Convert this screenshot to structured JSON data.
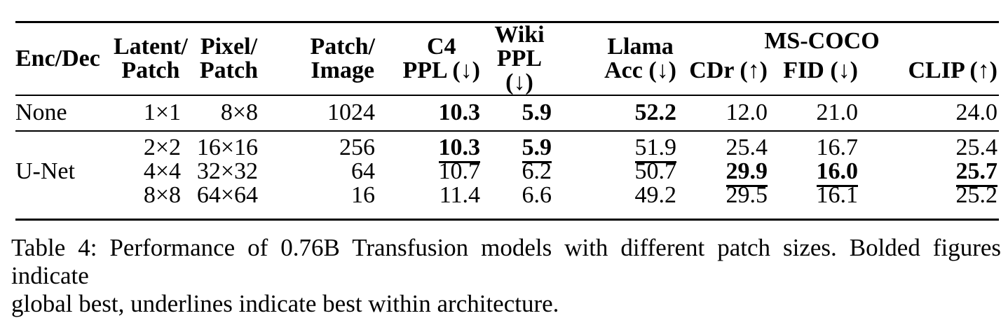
{
  "page": {
    "background": "#ffffff",
    "text_color": "#000000",
    "rule_color": "#000000"
  },
  "table": {
    "header": {
      "enc_dec": "Enc/Dec",
      "latent_patch": {
        "line1": "Latent/",
        "line2": "Patch"
      },
      "pixel_patch": {
        "line1": "Pixel/",
        "line2": "Patch"
      },
      "patch_image": {
        "line1": "Patch/",
        "line2": "Image"
      },
      "c4_ppl": {
        "line1": "C4",
        "line2": "PPL (↓)"
      },
      "wiki_ppl": {
        "line1": "Wiki",
        "line2": "PPL (↓)"
      },
      "llama_acc": {
        "line1": "Llama",
        "line2": "Acc (↓)"
      },
      "ms_coco_group": "MS-COCO",
      "cdr": "CDr (↑)",
      "fid": "FID (↓)",
      "clip": "CLIP (↑)"
    },
    "rows": [
      {
        "enc_dec": "None",
        "latent_patch": "1×1",
        "pixel_patch": "8×8",
        "patch_image": "1024",
        "c4_ppl": "10.3",
        "wiki_ppl": "5.9",
        "llama_acc": "52.2",
        "cdr": "12.0",
        "fid": "21.0",
        "clip": "24.0"
      },
      {
        "enc_dec": "",
        "latent_patch": "2×2",
        "pixel_patch": "16×16",
        "patch_image": "256",
        "c4_ppl": "10.3",
        "wiki_ppl": "5.9",
        "llama_acc": "51.9",
        "cdr": "25.4",
        "fid": "16.7",
        "clip": "25.4"
      },
      {
        "enc_dec": "U-Net",
        "latent_patch": "4×4",
        "pixel_patch": "32×32",
        "patch_image": "64",
        "c4_ppl": "10.7",
        "wiki_ppl": "6.2",
        "llama_acc": "50.7",
        "cdr": "29.9",
        "fid": "16.0",
        "clip": "25.7"
      },
      {
        "enc_dec": "",
        "latent_patch": "8×8",
        "pixel_patch": "64×64",
        "patch_image": "16",
        "c4_ppl": "11.4",
        "wiki_ppl": "6.6",
        "llama_acc": "49.2",
        "cdr": "29.5",
        "fid": "16.1",
        "clip": "25.2"
      }
    ],
    "formatting": {
      "bold_cells": [
        "rows.0.c4_ppl",
        "rows.0.wiki_ppl",
        "rows.0.llama_acc",
        "rows.1.c4_ppl",
        "rows.1.wiki_ppl",
        "rows.2.cdr",
        "rows.2.fid",
        "rows.2.clip"
      ],
      "underlined_cells": [
        "rows.1.c4_ppl",
        "rows.1.wiki_ppl",
        "rows.1.llama_acc",
        "rows.2.cdr",
        "rows.2.fid",
        "rows.2.clip"
      ]
    }
  },
  "caption": {
    "line1": "Table 4: Performance of 0.76B Transfusion models with different patch sizes. Bolded figures indicate",
    "line2": "global best, underlines indicate best within architecture."
  }
}
